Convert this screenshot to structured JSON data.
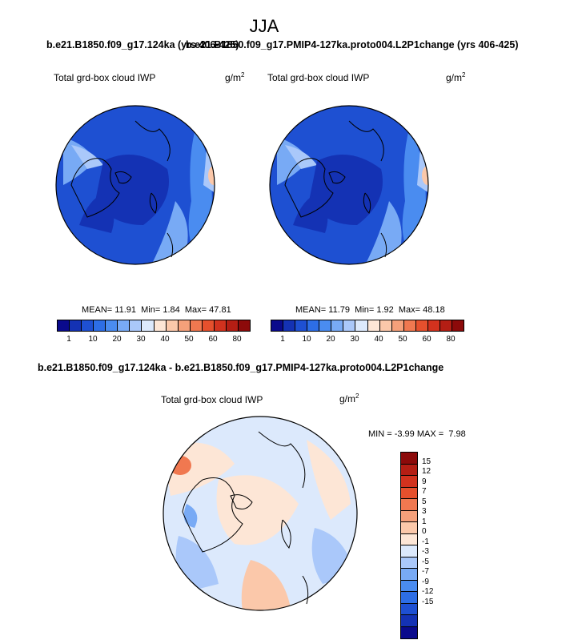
{
  "season": "JJA",
  "top_title_left": "b.e21.B1850.f09_g17.124ka (yrs 406-425)",
  "top_title_right": "b.e21.B1850.f09_g17.PMIP4-127ka.proto004.L2P1change (yrs 406-425)",
  "panels": [
    {
      "label": "Total grd-box cloud IWP",
      "unit": "g/m",
      "unit_exp": "2",
      "stats": {
        "mean_label": "MEAN=",
        "mean": "11.91",
        "min_label": "Min=",
        "min": "1.84",
        "max_label": "Max=",
        "max": "47.81"
      }
    },
    {
      "label": "Total grd-box cloud IWP",
      "unit": "g/m",
      "unit_exp": "2",
      "stats": {
        "mean_label": "MEAN=",
        "mean": "11.79",
        "min_label": "Min=",
        "min": "1.92",
        "max_label": "Max=",
        "max": "48.18"
      }
    }
  ],
  "abs_colorbar": {
    "ticks": [
      "1",
      "10",
      "20",
      "30",
      "40",
      "50",
      "60",
      "80"
    ],
    "colors": [
      "#0a0a8c",
      "#1432b4",
      "#1e50d2",
      "#2d6ee6",
      "#4a8cf0",
      "#78aaf5",
      "#aac8fa",
      "#dce9fc",
      "#fde6d6",
      "#fbc8aa",
      "#f5a07a",
      "#f07850",
      "#e6502d",
      "#d2321e",
      "#b41e14",
      "#8c0a0a"
    ]
  },
  "diff_title": "b.e21.B1850.f09_g17.124ka - b.e21.B1850.f09_g17.PMIP4-127ka.proto004.L2P1change",
  "diff_panel": {
    "label": "Total grd-box cloud IWP",
    "unit": "g/m",
    "unit_exp": "2",
    "stats": {
      "min_label": "MIN =",
      "min": "-3.99",
      "max_label": "MAX =",
      "max": "7.98"
    }
  },
  "diff_colorbar": {
    "ticks": [
      "15",
      "12",
      "9",
      "7",
      "5",
      "3",
      "1",
      "0",
      "-1",
      "-3",
      "-5",
      "-7",
      "-9",
      "-12",
      "-15"
    ],
    "colors": [
      "#8c0a0a",
      "#b41e14",
      "#d2321e",
      "#e6502d",
      "#f07850",
      "#f5a07a",
      "#fbc8aa",
      "#fde6d6",
      "#dce9fc",
      "#aac8fa",
      "#78aaf5",
      "#4a8cf0",
      "#2d6ee6",
      "#1e50d2",
      "#1432b4",
      "#0a0a8c"
    ]
  },
  "colors": {
    "deep_blue": "#1432b4",
    "mid_blue": "#2d6ee6",
    "light_red": "#f5a07a"
  }
}
